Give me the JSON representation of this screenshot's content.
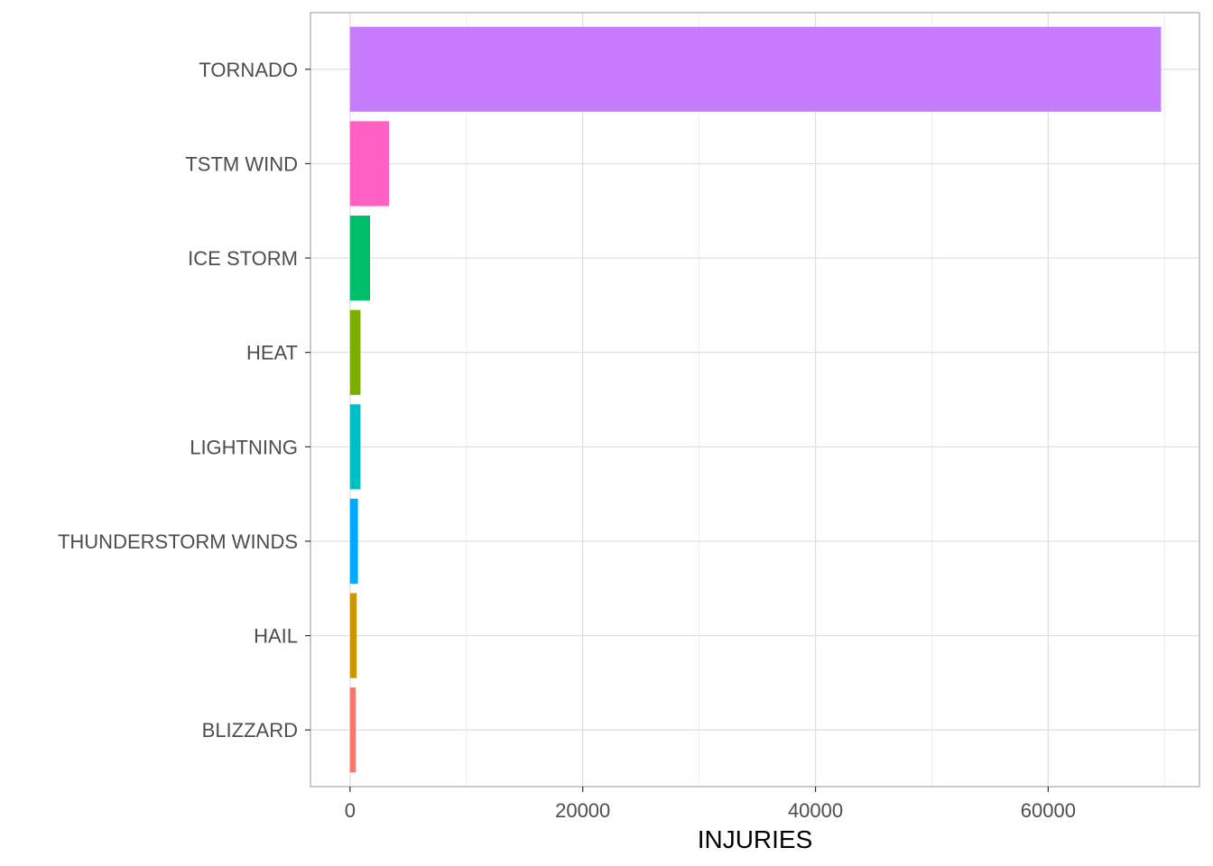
{
  "chart_data": {
    "type": "bar",
    "orientation": "horizontal",
    "categories": [
      "BLIZZARD",
      "HAIL",
      "THUNDERSTORM WINDS",
      "LIGHTNING",
      "HEAT",
      "ICE STORM",
      "TSTM WIND",
      "TORNADO"
    ],
    "values": [
      500,
      570,
      680,
      900,
      900,
      1720,
      3350,
      69700
    ],
    "colors": [
      "#F8766D",
      "#CD9600",
      "#00A9FF",
      "#00BFC4",
      "#7CAE00",
      "#00BE67",
      "#FF61C3",
      "#C77CFF"
    ],
    "xlabel": "INJURIES",
    "ylabel": "",
    "xlim": [
      -3400,
      73000
    ],
    "xticks": [
      0,
      20000,
      40000,
      60000
    ],
    "xtick_labels": [
      "0",
      "20000",
      "40000",
      "60000"
    ],
    "grid": true,
    "legend": "none"
  }
}
